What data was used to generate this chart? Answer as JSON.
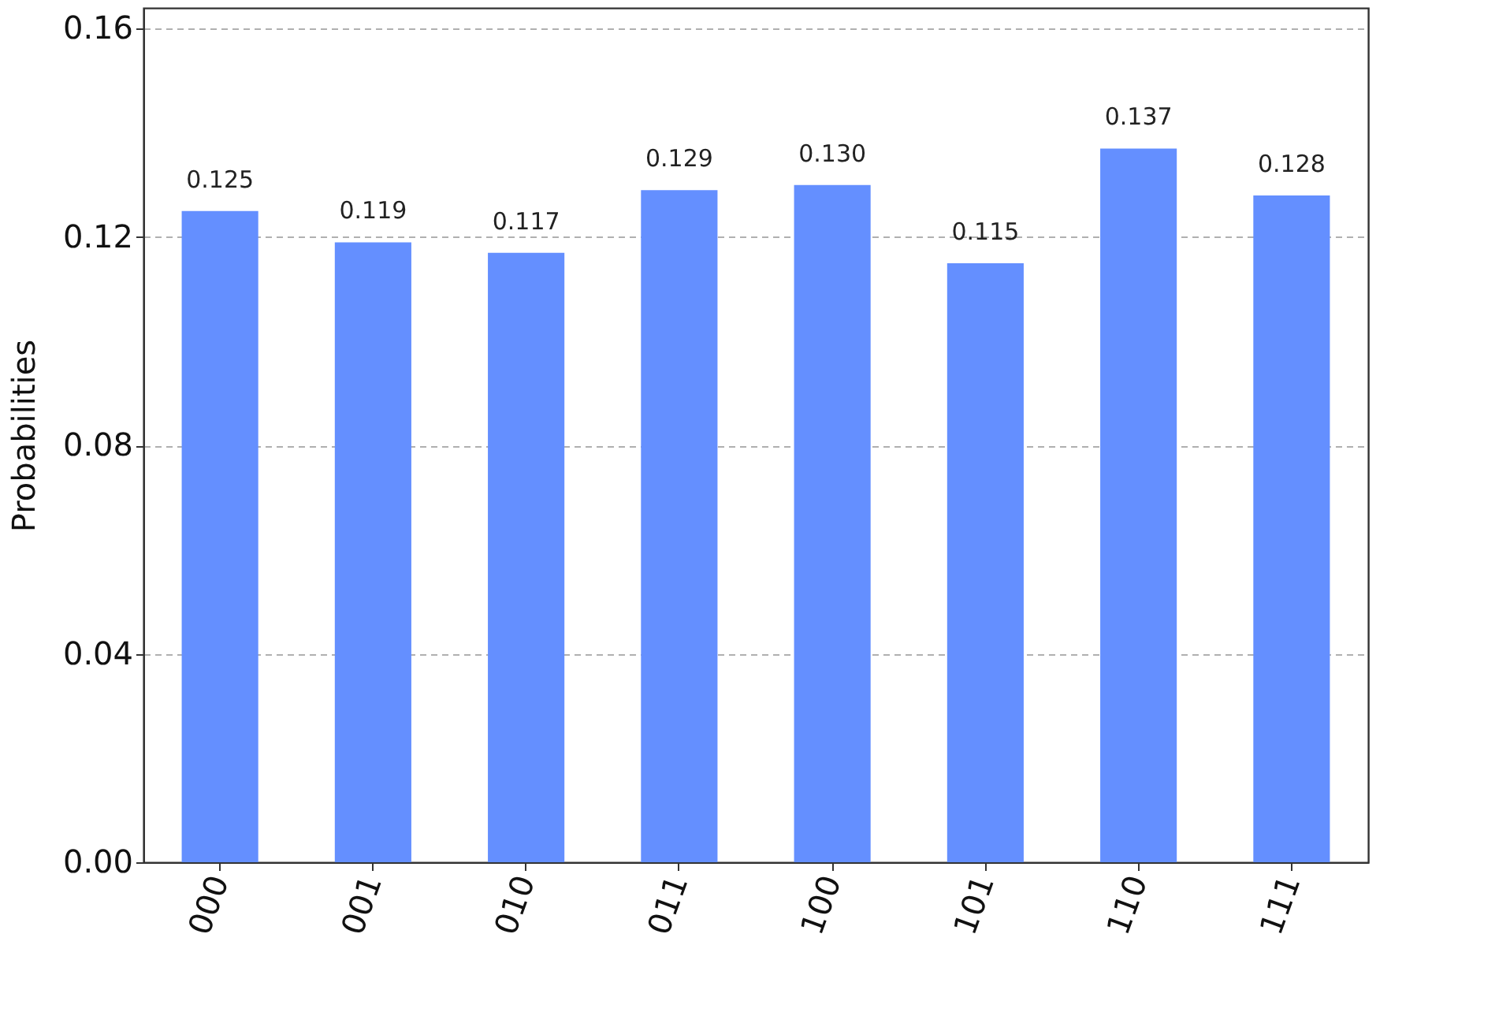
{
  "chart_data": {
    "type": "bar",
    "ylabel": "Probabilities",
    "categories": [
      "000",
      "001",
      "010",
      "011",
      "100",
      "101",
      "110",
      "111"
    ],
    "values": [
      0.125,
      0.119,
      0.117,
      0.129,
      0.13,
      0.115,
      0.137,
      0.128
    ],
    "value_labels": [
      "0.125",
      "0.119",
      "0.117",
      "0.129",
      "0.130",
      "0.115",
      "0.137",
      "0.128"
    ],
    "color": "#648fff",
    "ylim": [
      0,
      0.164
    ],
    "yticks": [
      {
        "value": 0,
        "label": "0.00"
      },
      {
        "value": 0.04,
        "label": "0.04"
      },
      {
        "value": 0.08,
        "label": "0.08"
      },
      {
        "value": 0.12,
        "label": "0.12"
      },
      {
        "value": 0.16,
        "label": "0.16"
      }
    ],
    "grid": "y"
  }
}
